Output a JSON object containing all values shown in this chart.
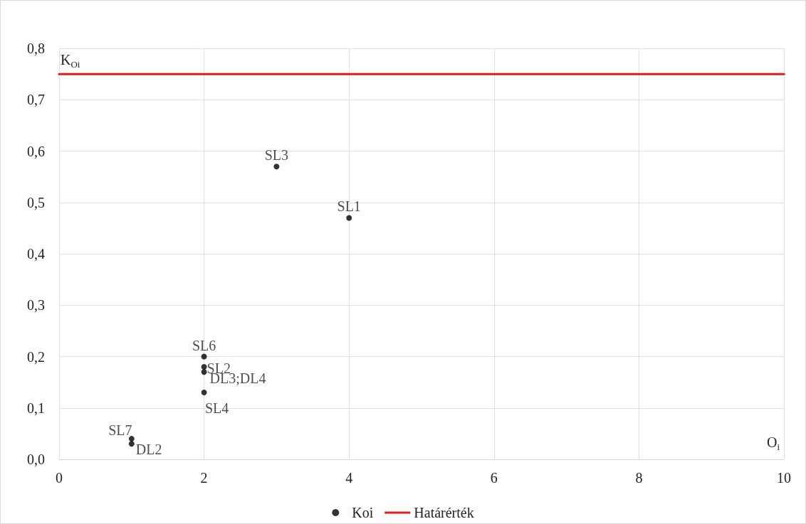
{
  "chart_data": {
    "type": "scatter",
    "xlabel": "O$_{i}$",
    "ylabel": "K$_{Oi}$",
    "xlim": [
      0,
      10
    ],
    "xticks": [
      0,
      2,
      4,
      6,
      8,
      10
    ],
    "ylim": [
      0,
      0.8
    ],
    "yticks": [
      {
        "value": 0,
        "label": "0,0"
      },
      {
        "value": 0.1,
        "label": "0,1"
      },
      {
        "value": 0.2,
        "label": "0,2"
      },
      {
        "value": 0.3,
        "label": "0,3"
      },
      {
        "value": 0.4,
        "label": "0,4"
      },
      {
        "value": 0.5,
        "label": "0,5"
      },
      {
        "value": 0.6,
        "label": "0,6"
      },
      {
        "value": 0.7,
        "label": "0,7"
      },
      {
        "value": 0.8,
        "label": "0,8"
      }
    ],
    "grid": true,
    "legend": "bottom",
    "marker": "circle",
    "series": [
      {
        "name": "Koi",
        "color": "#000000",
        "x": [
          3,
          4,
          2,
          2,
          2,
          2,
          1,
          1
        ],
        "values": [
          0.57,
          0.47,
          0.2,
          0.18,
          0.17,
          0.13,
          0.04,
          0.03
        ],
        "value_labels": [
          "SL3",
          "SL1",
          "SL6",
          "SL2",
          "DL3;DL4",
          "SL4",
          "SL7",
          "DL2"
        ]
      },
      {
        "name": "Határérték",
        "type": "line",
        "color": "#e41a1c",
        "x": [
          0,
          10
        ],
        "values": [
          0.75,
          0.75
        ],
        "line_style": "solid",
        "marker": "none"
      }
    ]
  }
}
